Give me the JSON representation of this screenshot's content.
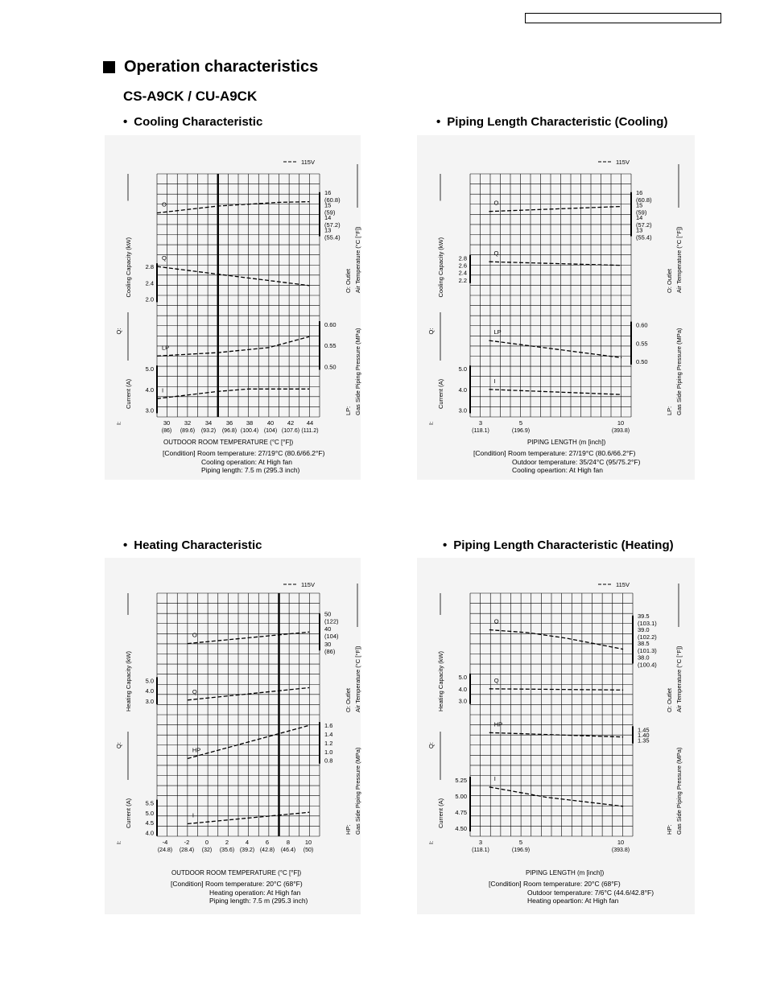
{
  "page": {
    "heading": "Operation characteristics",
    "model": "CS-A9CK / CU-A9CK",
    "bullet": "•"
  },
  "panels": [
    {
      "title": "Cooling Characteristic",
      "legend": "115V",
      "xlabel": "OUTDOOR  ROOM TEMPERATURE (°C [°F])",
      "x_ticks": [
        "30",
        "32",
        "34",
        "36",
        "38",
        "40",
        "42",
        "44"
      ],
      "x_ticks_sub": [
        "(86)",
        "(89.6)",
        "(93.2)",
        "(96.8)",
        "(100.4)",
        "(104)",
        "(107.6)",
        "(111.2)"
      ],
      "left_axis_labels": [
        {
          "prefix": "Q:",
          "text": "Cooling Capacity (kW)"
        },
        {
          "prefix": "I:",
          "text": "Current (A)"
        }
      ],
      "right_axis_labels": [
        {
          "prefix": "O: Outlet",
          "text": "Air Temperature (°C [°F])"
        },
        {
          "prefix": "LP:",
          "text": "Gas Side Piping Pressure (MPa)"
        }
      ],
      "condition": [
        "[Condition]  Room temperature: 27/19°C (80.6/66.2°F)",
        "Cooling operation: At High fan",
        "Piping length: 7.5 m (295.3 inch)"
      ]
    },
    {
      "title": "Piping Length Characteristic (Cooling)",
      "legend": "115V",
      "xlabel": "PIPING LENGTH (m [inch])",
      "x_ticks": [
        "3",
        "5",
        "10"
      ],
      "x_ticks_sub": [
        "(118.1)",
        "(196.9)",
        "(393.8)"
      ],
      "left_axis_labels": [
        {
          "prefix": "Q:",
          "text": "Cooling  Capacity (kW)"
        },
        {
          "prefix": "I:",
          "text": "Current (A)"
        }
      ],
      "right_axis_labels": [
        {
          "prefix": "O: Outlet",
          "text": "Air Temperature (°C [°F])"
        },
        {
          "prefix": "LP:",
          "text": "Gas Side Piping Pressure (MPa)"
        }
      ],
      "condition": [
        "[Condition]  Room temperature: 27/19°C (80.6/66.2°F)",
        "Outdoor temperature: 35/24°C (95/75.2°F)",
        "Cooling opeartion: At High fan"
      ]
    },
    {
      "title": "Heating Characteristic",
      "legend": "115V",
      "xlabel": "OUTDOOR  ROOM TEMPERATURE (°C [°F])",
      "x_ticks": [
        "-4",
        "-2",
        "0",
        "2",
        "4",
        "6",
        "8",
        "10"
      ],
      "x_ticks_sub": [
        "(24.8)",
        "(28.4)",
        "(32)",
        "(35.6)",
        "(39.2)",
        "(42.8)",
        "(46.4)",
        "(50)"
      ],
      "left_axis_labels": [
        {
          "prefix": "Q:",
          "text": "Heating Capacity (kW)"
        },
        {
          "prefix": "I:",
          "text": "Current (A)"
        }
      ],
      "right_axis_labels": [
        {
          "prefix": "O: Outlet",
          "text": "Air Temperature (°C [°F])"
        },
        {
          "prefix": "HP:",
          "text": "Gas Side Piping Pressure (MPa)"
        }
      ],
      "condition": [
        "[Condition]  Room temperature: 20°C (68°F)",
        "Heating operation: At High fan",
        "Piping length: 7.5 m (295.3 inch)"
      ]
    },
    {
      "title": "Piping Length Characteristic (Heating)",
      "legend": "115V",
      "xlabel": "PIPING LENGTH (m [inch])",
      "x_ticks": [
        "3",
        "5",
        "10"
      ],
      "x_ticks_sub": [
        "(118.1)",
        "(196.9)",
        "(393.8)"
      ],
      "left_axis_labels": [
        {
          "prefix": "Q:",
          "text": "Heating Capacity (kW)"
        },
        {
          "prefix": "I:",
          "text": "Current (A)"
        }
      ],
      "right_axis_labels": [
        {
          "prefix": "O: Outlet",
          "text": "Air Temperature (°C [°F])"
        },
        {
          "prefix": "HP:",
          "text": "Gas Side Piping Pressure (MPa)"
        }
      ],
      "condition": [
        "[Condition]  Room temperature: 20°C (68°F)",
        "Outdoor temperature: 7/6°C (44.6/42.8°F)",
        "Heating opeartion: At High fan"
      ]
    }
  ],
  "chart_data": [
    {
      "type": "line",
      "title": "Cooling Characteristic",
      "x_unit": "°C",
      "x_range": [
        29,
        45
      ],
      "reference_x": 35,
      "series": [
        {
          "name": "O",
          "axis": "right",
          "range": [
            12.2,
            16.5
          ],
          "ticks": [
            "16",
            "15",
            "14",
            "13"
          ],
          "tick_values": [
            16,
            15,
            14,
            13
          ],
          "tick_subs": [
            "(60.8)",
            "(59)",
            "(57.2)",
            "(55.4)"
          ],
          "x": [
            29,
            35,
            41,
            44
          ],
          "y": [
            14.6,
            15.15,
            15.45,
            15.5
          ]
        },
        {
          "name": "Q",
          "axis": "left",
          "range": [
            1.75,
            3.1
          ],
          "ticks": [
            "2.8",
            "2.4",
            "2.0"
          ],
          "tick_values": [
            2.8,
            2.4,
            2.0
          ],
          "x": [
            29,
            35,
            44
          ],
          "y": [
            2.8,
            2.61,
            2.33
          ]
        },
        {
          "name": "LP",
          "axis": "right",
          "range": [
            0.495,
            0.625
          ],
          "ticks": [
            "0.60",
            "0.55",
            "0.50"
          ],
          "tick_values": [
            0.6,
            0.55,
            0.5
          ],
          "x": [
            29,
            35,
            40,
            44
          ],
          "y": [
            0.525,
            0.533,
            0.545,
            0.571
          ]
        },
        {
          "name": "I",
          "axis": "left",
          "range": [
            2.9,
            5.2
          ],
          "ticks": [
            "5.0",
            "4.0",
            "3.0"
          ],
          "tick_values": [
            5.0,
            4.0,
            3.0
          ],
          "x": [
            29,
            35,
            38,
            44
          ],
          "y": [
            3.55,
            3.9,
            4.02,
            4.02
          ]
        }
      ]
    },
    {
      "type": "line",
      "title": "Piping Length Characteristic (Cooling)",
      "x_unit": "m",
      "x_range": [
        2,
        10.5
      ],
      "series": [
        {
          "name": "O",
          "axis": "right",
          "range": [
            12.2,
            16.5
          ],
          "ticks": [
            "16",
            "15",
            "14",
            "13"
          ],
          "tick_values": [
            16,
            15,
            14,
            13
          ],
          "tick_subs": [
            "(60.8)",
            "(59)",
            "(57.2)",
            "(55.4)"
          ],
          "x": [
            3,
            10
          ],
          "y": [
            14.72,
            15.12
          ]
        },
        {
          "name": "Q",
          "axis": "left",
          "range": [
            1.4,
            3.3
          ],
          "ticks": [
            "2.8",
            "2.6",
            "2.4",
            "2.2"
          ],
          "tick_values": [
            2.8,
            2.6,
            2.4,
            2.2
          ],
          "x": [
            3,
            10
          ],
          "y": [
            2.7,
            2.6
          ]
        },
        {
          "name": "LP",
          "axis": "right",
          "range": [
            0.48,
            0.63
          ],
          "ticks": [
            "0.60",
            "0.55",
            "0.50"
          ],
          "tick_values": [
            0.6,
            0.55,
            0.5
          ],
          "x": [
            3,
            10
          ],
          "y": [
            0.557,
            0.51
          ]
        },
        {
          "name": "I",
          "axis": "left",
          "range": [
            2.9,
            5.2
          ],
          "ticks": [
            "5.0",
            "4.0",
            "3.0"
          ],
          "tick_values": [
            5.0,
            4.0,
            3.0
          ],
          "x": [
            3,
            10
          ],
          "y": [
            4.0,
            3.75
          ]
        }
      ]
    },
    {
      "type": "line",
      "title": "Heating Characteristic",
      "x_unit": "°C",
      "x_range": [
        -5,
        11
      ],
      "reference_x": 7,
      "series": [
        {
          "name": "O",
          "axis": "right",
          "range": [
            20,
            56
          ],
          "ticks": [
            "50",
            "40",
            "30"
          ],
          "tick_values": [
            50,
            40,
            30
          ],
          "tick_subs": [
            "(122)",
            "(104)",
            "(86)"
          ],
          "x": [
            -2,
            10
          ],
          "y": [
            32.4,
            40
          ]
        },
        {
          "name": "Q",
          "axis": "left",
          "range": [
            1.3,
            7.2
          ],
          "ticks": [
            "5.0",
            "4.0",
            "3.0"
          ],
          "tick_values": [
            5.0,
            4.0,
            3.0
          ],
          "x": [
            -2,
            10
          ],
          "y": [
            3.1,
            4.3
          ]
        },
        {
          "name": "HP",
          "axis": "right",
          "range": [
            0.5,
            1.75
          ],
          "ticks": [
            "1.6",
            "1.4",
            "1.2",
            "1.0",
            "0.8"
          ],
          "tick_values": [
            1.6,
            1.4,
            1.2,
            1.0,
            0.8
          ],
          "x": [
            -2,
            10
          ],
          "y": [
            0.84,
            1.6
          ]
        },
        {
          "name": "I",
          "axis": "left",
          "range": [
            3.9,
            6.5
          ],
          "ticks": [
            "5.5",
            "5.0",
            "4.5",
            "4.0"
          ],
          "tick_values": [
            5.5,
            5.0,
            4.5,
            4.0
          ],
          "x": [
            -2,
            10
          ],
          "y": [
            4.45,
            5.03
          ]
        }
      ]
    },
    {
      "type": "line",
      "title": "Piping Length Characteristic (Heating)",
      "x_unit": "m",
      "x_range": [
        2,
        10.5
      ],
      "series": [
        {
          "name": "O",
          "axis": "right",
          "range": [
            37.4,
            39.9
          ],
          "ticks": [
            "39.5",
            "39.0",
            "38.5",
            "38.0"
          ],
          "tick_values": [
            39.5,
            39.0,
            38.5,
            38.0
          ],
          "tick_subs": [
            "(103.1)",
            "(102.2)",
            "(101.3)",
            "(100.4)"
          ],
          "x": [
            3,
            5,
            7,
            10
          ],
          "y": [
            39.1,
            39.0,
            38.8,
            38.4
          ]
        },
        {
          "name": "Q",
          "axis": "left",
          "range": [
            1.5,
            6.2
          ],
          "ticks": [
            "5.0",
            "4.0",
            "3.0"
          ],
          "tick_values": [
            5.0,
            4.0,
            3.0
          ],
          "x": [
            3,
            10
          ],
          "y": [
            4.0,
            3.9
          ]
        },
        {
          "name": "HP",
          "axis": "right",
          "range": [
            1.25,
            1.55
          ],
          "ticks": [
            "1.45",
            "1.40",
            "1.35"
          ],
          "tick_values": [
            1.45,
            1.4,
            1.35
          ],
          "x": [
            3,
            10
          ],
          "y": [
            1.42,
            1.38
          ]
        },
        {
          "name": "I",
          "axis": "left",
          "range": [
            4.4,
            5.6
          ],
          "ticks": [
            "5.25",
            "5.00",
            "4.75",
            "4.50"
          ],
          "tick_values": [
            5.25,
            5.0,
            4.75,
            4.5
          ],
          "x": [
            3,
            6,
            10
          ],
          "y": [
            5.14,
            4.98,
            4.84
          ]
        }
      ]
    }
  ]
}
